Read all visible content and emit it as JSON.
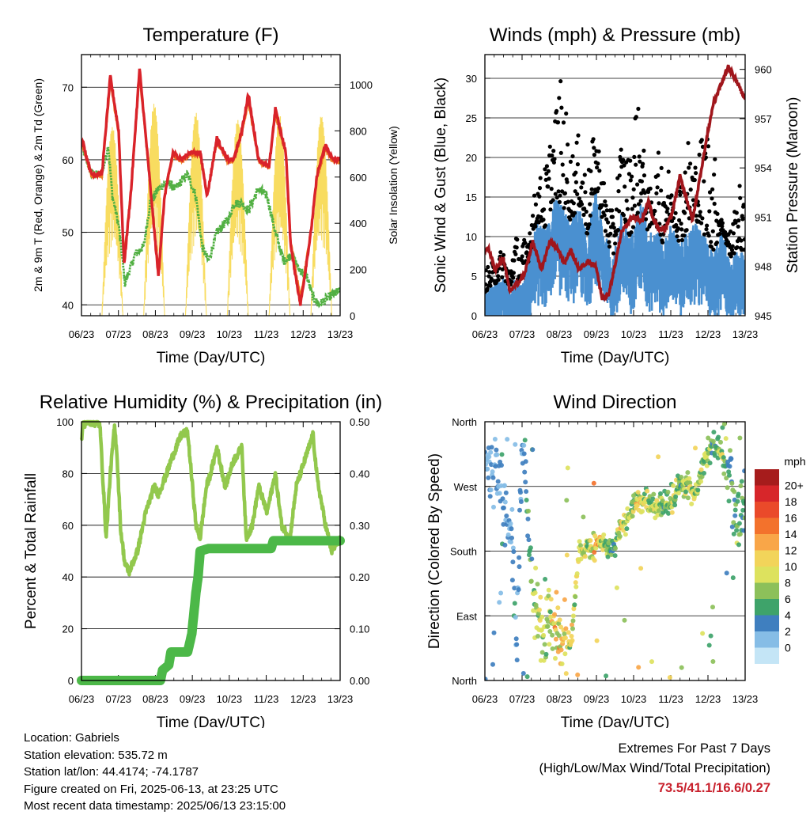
{
  "chart_data": [
    {
      "type": "line",
      "title": "Temperature (F)",
      "xlabel": "Time (Day/UTC)",
      "ylabel": "2m & 9m T (Red, Orange) & 2m Td (Green)",
      "y2label": "Solar Insolation (Yellow)",
      "x_ticks": [
        "06/23",
        "07/23",
        "08/23",
        "09/23",
        "10/23",
        "11/23",
        "12/23",
        "13/23"
      ],
      "ylim": [
        38.5,
        74.5
      ],
      "y_ticks": [
        40,
        50,
        60,
        70
      ],
      "y2lim": [
        0,
        1130
      ],
      "y2_ticks": [
        0,
        200,
        400,
        600,
        800,
        1000
      ],
      "grid": "horizontal",
      "colors": {
        "t2m": "#d9232a",
        "t9m": "#ef7a22",
        "td": "#52b043",
        "solar": "#f8dc60"
      },
      "series": [
        {
          "key": "t2m",
          "x": [
            6.96,
            7.2,
            7.45,
            7.65,
            7.85,
            7.98,
            8.15,
            8.35,
            8.55,
            8.8,
            8.95,
            9.15,
            9.35,
            9.55,
            9.8,
            9.97,
            10.2,
            10.45,
            10.6,
            10.8,
            10.95,
            11.2,
            11.45,
            11.6,
            11.85,
            11.97,
            12.2,
            12.45,
            12.6,
            12.8,
            12.97,
            13.15
          ],
          "y": [
            63,
            58,
            58,
            71.5,
            64,
            45.5,
            56,
            72.5,
            60,
            44,
            55,
            61,
            60,
            61,
            61,
            55,
            63,
            60,
            60,
            64,
            69,
            60,
            59,
            67,
            61,
            48,
            40,
            50,
            58,
            62,
            60,
            60
          ]
        },
        {
          "key": "t9m",
          "x": [
            6.96,
            7.2,
            7.45,
            7.65,
            7.85,
            7.98,
            8.15,
            8.35,
            8.55,
            8.8,
            8.95,
            9.15,
            9.35,
            9.55,
            9.8,
            9.97,
            10.2,
            10.45,
            10.6,
            10.8,
            10.95,
            11.2,
            11.45,
            11.6,
            11.85,
            11.97,
            12.2,
            12.45,
            12.6,
            12.8,
            12.97,
            13.15
          ],
          "y": [
            62.6,
            57.7,
            57.8,
            70.5,
            63.7,
            46.5,
            56.1,
            71.6,
            59.8,
            45,
            55.2,
            60.6,
            59.8,
            60.7,
            60.7,
            55.2,
            62.5,
            59.8,
            59.8,
            63.5,
            68,
            59.8,
            58.9,
            66.2,
            60.8,
            48.6,
            41,
            50.2,
            57.6,
            61.4,
            59.8,
            59.8
          ]
        },
        {
          "key": "td",
          "x": [
            6.96,
            7.2,
            7.45,
            7.6,
            7.7,
            7.85,
            8.0,
            8.25,
            8.45,
            8.6,
            8.8,
            9.0,
            9.2,
            9.35,
            9.5,
            9.7,
            9.85,
            10.0,
            10.2,
            10.5,
            10.6,
            10.8,
            10.95,
            11.2,
            11.4,
            11.6,
            11.8,
            12.0,
            12.15,
            12.35,
            12.5,
            12.65,
            12.85,
            13.15
          ],
          "y": [
            62,
            58,
            58,
            62,
            55,
            51,
            43,
            47,
            48,
            54,
            56,
            57,
            56,
            57,
            58,
            55,
            48,
            46,
            50,
            52,
            54,
            54,
            53,
            56,
            55,
            50,
            46,
            47,
            45,
            44,
            41,
            40,
            41,
            42
          ]
        },
        {
          "key": "solar",
          "days": [
            7,
            8,
            9,
            10,
            11,
            12,
            13
          ],
          "peaks": [
            820,
            920,
            880,
            850,
            870,
            870,
            900
          ]
        }
      ]
    },
    {
      "type": "scatter",
      "title": "Winds (mph) & Pressure (mb)",
      "xlabel": "Time (Day/UTC)",
      "ylabel": "Sonic Wind & Gust (Blue, Black)",
      "y2label": "Station Pressure (Maroon)",
      "x_ticks": [
        "06/23",
        "07/23",
        "08/23",
        "09/23",
        "10/23",
        "11/23",
        "12/23",
        "13/23"
      ],
      "ylim": [
        0,
        33
      ],
      "y_ticks": [
        0,
        5,
        10,
        15,
        20,
        25,
        30
      ],
      "y2lim": [
        945,
        960.9
      ],
      "y2_ticks": [
        945,
        948,
        951,
        954,
        957,
        960
      ],
      "grid": "horizontal",
      "colors": {
        "wind": "#4a90d0",
        "gust": "#000000",
        "pressure": "#a0161c"
      },
      "series": [
        {
          "key": "pressure",
          "x": [
            6.96,
            7.05,
            7.2,
            7.4,
            7.55,
            7.75,
            7.9,
            8.1,
            8.3,
            8.5,
            8.7,
            8.85,
            9.0,
            9.2,
            9.4,
            9.6,
            9.75,
            9.9,
            10.05,
            10.2,
            10.45,
            10.7,
            10.85,
            10.95,
            11.1,
            11.25,
            11.4,
            11.6,
            11.75,
            11.9,
            12.1,
            12.25,
            12.4,
            12.6,
            12.75,
            12.9,
            13.0,
            13.15
          ],
          "y": [
            949,
            949.1,
            947.8,
            948.5,
            946.5,
            947,
            947.5,
            949.5,
            947.8,
            949.5,
            949,
            948.2,
            949,
            947.8,
            948.3,
            948,
            946,
            946.3,
            948,
            950,
            951,
            950.8,
            952,
            951,
            950.2,
            950.3,
            951.1,
            953.5,
            952.2,
            950.8,
            953.8,
            956,
            958,
            959.2,
            960.2,
            959.5,
            959,
            958.2
          ]
        },
        {
          "key": "wind_envelope",
          "x": [
            6.96,
            7.2,
            7.4,
            7.55,
            7.65,
            7.85,
            8.0,
            8.2,
            8.4,
            8.6,
            8.8,
            9.0,
            9.2,
            9.4,
            9.6,
            9.8,
            10.0,
            10.2,
            10.4,
            10.55,
            10.7,
            10.85,
            11.0,
            11.2,
            11.4,
            11.6,
            11.8,
            12.0,
            12.2,
            12.4,
            12.6,
            12.8,
            13.0,
            13.15
          ],
          "y": [
            3,
            4,
            5,
            3,
            5,
            4,
            7,
            12,
            11,
            15,
            14,
            12,
            14,
            10,
            16,
            11,
            7,
            13,
            10,
            12,
            15,
            10,
            12,
            9,
            12,
            9,
            11,
            12,
            10,
            8,
            11,
            7,
            9,
            7
          ]
        },
        {
          "key": "gust_envelope",
          "x": [
            6.96,
            7.2,
            7.4,
            7.55,
            7.65,
            7.85,
            8.0,
            8.2,
            8.4,
            8.6,
            8.8,
            9.0,
            9.2,
            9.4,
            9.6,
            9.8,
            10.0,
            10.2,
            10.4,
            10.55,
            10.7,
            10.85,
            11.0,
            11.2,
            11.4,
            11.6,
            11.8,
            12.0,
            12.2,
            12.4,
            12.6,
            12.8,
            13.0,
            13.15
          ],
          "y": [
            6,
            7,
            9,
            6,
            11,
            9,
            12,
            17,
            19,
            26,
            30.8,
            21,
            23,
            18,
            25,
            17,
            13,
            23,
            20,
            29,
            23,
            16,
            18,
            24,
            16,
            18,
            23,
            20,
            26,
            22,
            12,
            11,
            17,
            14
          ]
        }
      ]
    },
    {
      "type": "line",
      "title": "Relative Humidity (%) & Precipitation (in)",
      "xlabel": "Time (Day/UTC)",
      "ylabel": "Percent & Total Rainfall",
      "x_ticks": [
        "06/23",
        "07/23",
        "08/23",
        "09/23",
        "10/23",
        "11/23",
        "12/23",
        "13/23"
      ],
      "ylim": [
        0,
        100
      ],
      "y_ticks": [
        0,
        20,
        40,
        60,
        80,
        100
      ],
      "y2lim": [
        0,
        0.5
      ],
      "y2_ticks": [
        "0.00",
        "0.10",
        "0.20",
        "0.30",
        "0.40",
        "0.50"
      ],
      "grid": "horizontal",
      "colors": {
        "rh": "#92c84d",
        "precip": "#4cb848"
      },
      "series": [
        {
          "key": "rh",
          "x": [
            6.96,
            7.0,
            7.1,
            7.2,
            7.4,
            7.5,
            7.55,
            7.65,
            7.75,
            7.8,
            7.9,
            8.0,
            8.1,
            8.3,
            8.5,
            8.7,
            8.8,
            9.0,
            9.1,
            9.35,
            9.5,
            9.7,
            9.8,
            9.95,
            10.05,
            10.2,
            10.4,
            10.6,
            10.8,
            10.9,
            11.05,
            11.2,
            11.4,
            11.6,
            11.75,
            11.95,
            12.1,
            12.3,
            12.5,
            12.6,
            12.8,
            12.95,
            13.15
          ],
          "y": [
            93,
            99,
            100,
            100,
            99,
            70,
            55,
            80,
            98,
            90,
            58,
            45,
            42,
            50,
            65,
            75,
            72,
            80,
            85,
            95,
            96,
            60,
            55,
            75,
            80,
            90,
            75,
            85,
            90,
            55,
            60,
            75,
            65,
            80,
            60,
            55,
            75,
            85,
            95,
            78,
            60,
            50,
            55
          ]
        },
        {
          "key": "precip",
          "x": [
            6.96,
            8.85,
            8.9,
            9.05,
            9.1,
            9.5,
            9.6,
            9.7,
            9.75,
            9.8,
            10.0,
            11.5,
            11.55,
            13.15
          ],
          "y": [
            0,
            0,
            0.02,
            0.03,
            0.055,
            0.055,
            0.09,
            0.17,
            0.2,
            0.25,
            0.255,
            0.255,
            0.27,
            0.27
          ]
        }
      ]
    },
    {
      "type": "scatter",
      "title": "Wind Direction",
      "xlabel": "Time (Day/UTC)",
      "ylabel": "Direction (Colored By Speed)",
      "x_ticks": [
        "06/23",
        "07/23",
        "08/23",
        "09/23",
        "10/23",
        "11/23",
        "12/23",
        "13/23"
      ],
      "y_ticks": [
        "North",
        "East",
        "South",
        "West",
        "North"
      ],
      "ylim": [
        0,
        360
      ],
      "grid": "horizontal",
      "legend": {
        "title": "mph",
        "placement": "right",
        "labels": [
          "20+",
          "18",
          "16",
          "14",
          "12",
          "10",
          "8",
          "6",
          "4",
          "2",
          "0"
        ],
        "colors": [
          "#a61c1c",
          "#d7262a",
          "#ea4a2a",
          "#f3722c",
          "#f9a648",
          "#f2d45a",
          "#dde25e",
          "#8cc05a",
          "#3ea36a",
          "#3f7fbf",
          "#86bde6",
          "#c4e5f6"
        ]
      },
      "series": [
        {
          "key": "direction_trend",
          "x": [
            6.96,
            7.3,
            7.6,
            7.7,
            7.85,
            8.1,
            8.3,
            8.5,
            8.75,
            9.0,
            9.2,
            9.4,
            9.6,
            9.8,
            10.0,
            10.2,
            10.4,
            10.6,
            10.8,
            11.0,
            11.2,
            11.4,
            11.6,
            11.8,
            12.0,
            12.2,
            12.4,
            12.6,
            12.8,
            13.0,
            13.15
          ],
          "y": [
            315,
            270,
            200,
            40,
            355,
            120,
            60,
            90,
            60,
            50,
            180,
            180,
            190,
            190,
            180,
            215,
            230,
            245,
            250,
            240,
            245,
            248,
            275,
            270,
            260,
            310,
            330,
            315,
            290,
            200,
            250
          ]
        }
      ]
    }
  ],
  "footer": {
    "location": "Location: Gabriels",
    "elevation": "Station elevation: 535.72 m",
    "latlon": "Station lat/lon: 44.4174; -74.1787",
    "created": "Figure created on Fri, 2025-06-13, at 23:25 UTC",
    "recent": "Most recent data timestamp: 2025/06/13 23:15:00"
  },
  "extremes": {
    "title": "Extremes For Past 7 Days",
    "subtitle": "(High/Low/Max Wind/Total Precipitation)",
    "values": "73.5/41.1/16.6/0.27"
  }
}
